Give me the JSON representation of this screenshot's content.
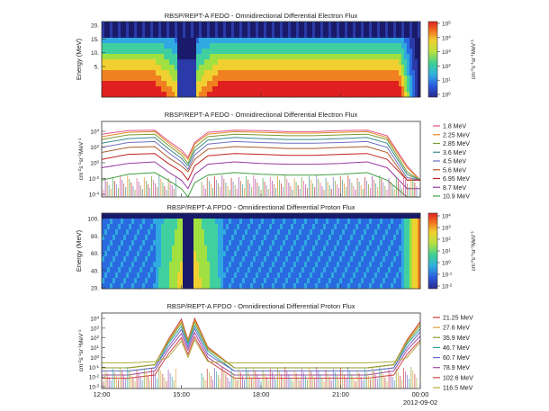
{
  "panels": [
    {
      "title": "RBSP/REPT-A  FEDO - Omnidirectional Differential Electron Flux",
      "kind": "spectrogram",
      "ylabel": "Energy (MeV)",
      "yticks": [
        "20.",
        "15.",
        "10.",
        "5."
      ],
      "colorbar": {
        "ticks": [
          "10^5",
          "10^4",
          "10^3",
          "10^2",
          "10^1",
          "10^0"
        ],
        "unit": "cm^-2s^-1sr^-1MeV^-1"
      }
    },
    {
      "title": "RBSP/REPT-A  FEDO - Omnidirectional Differential Electron Flux",
      "kind": "lines",
      "ylabel": "cm^-2s^-1sr^-1MeV^-1",
      "yticks": [
        "10^4",
        "10^2",
        "10^0",
        "10^-2",
        "10^-4"
      ],
      "legend": [
        {
          "label": "1.8 MeV",
          "color": "#e0508a"
        },
        {
          "label": "2.25 MeV",
          "color": "#e08a20"
        },
        {
          "label": "2.85 MeV",
          "color": "#7a9a30"
        },
        {
          "label": "3.6 MeV",
          "color": "#3a8a8a"
        },
        {
          "label": "4.5 MeV",
          "color": "#6f6fc0"
        },
        {
          "label": "5.6 MeV",
          "color": "#b05a2a"
        },
        {
          "label": "6.95 MeV",
          "color": "#c02020"
        },
        {
          "label": "8.7 MeV",
          "color": "#9a3aa0"
        },
        {
          "label": "10.9 MeV",
          "color": "#40a040"
        }
      ]
    },
    {
      "title": "RBSP/REPT-A  FPDO - Omnidirectional Differential Proton Flux",
      "kind": "spectrogram",
      "ylabel": "Energy (MeV)",
      "yticks": [
        "100.",
        "80.",
        "60.",
        "40.",
        "20."
      ],
      "colorbar": {
        "ticks": [
          "10^4",
          "10^3",
          "10^2",
          "10^1",
          "10^0",
          "10^-1",
          "10^-2"
        ],
        "unit": "cm^-2s^-1sr^-1MeV^-1"
      }
    },
    {
      "title": "RBSP/REPT-A  FPDO - Omnidirectional Differential Proton Flux",
      "kind": "lines",
      "ylabel": "cm^-2s^-1sr^-1MeV^-1",
      "yticks": [
        "10^4",
        "10^3",
        "10^2",
        "10^1",
        "10^0",
        "10^-1",
        "10^-2",
        "10^-3"
      ],
      "legend": [
        {
          "label": "21.25 MeV",
          "color": "#c03a3a"
        },
        {
          "label": "27.6 MeV",
          "color": "#e0a030"
        },
        {
          "label": "35.9 MeV",
          "color": "#8aa030"
        },
        {
          "label": "46.7 MeV",
          "color": "#30a0a0"
        },
        {
          "label": "60.7 MeV",
          "color": "#6a6ac8"
        },
        {
          "label": "78.9 MeV",
          "color": "#a04aa0"
        },
        {
          "label": "102.6 MeV",
          "color": "#d04040"
        },
        {
          "label": "116.5 MeV",
          "color": "#b0b040"
        }
      ]
    }
  ],
  "xticks": [
    "12:00",
    "15:00",
    "18:00",
    "21:00",
    "00:00"
  ],
  "date_label": "2012-09-02",
  "chart_data": [
    {
      "type": "heatmap",
      "title": "RBSP/REPT-A  FEDO - Omnidirectional Differential Electron Flux",
      "xlabel": "",
      "ylabel": "Energy (MeV)",
      "x_range": [
        "12:00",
        "00:00"
      ],
      "y_range_mev": [
        1.8,
        20
      ],
      "color_scale": "log",
      "color_range": [
        1,
        100000
      ],
      "color_unit": "cm^-2s^-1sr^-1MeV^-1"
    },
    {
      "type": "line",
      "title": "RBSP/REPT-A  FEDO - Omnidirectional Differential Electron Flux",
      "x": [
        "12:00",
        "13:00",
        "14:00",
        "14:30",
        "15:00",
        "15:15",
        "15:30",
        "16:00",
        "17:00",
        "18:00",
        "19:00",
        "20:00",
        "21:00",
        "22:00",
        "22:45",
        "23:30",
        "00:00"
      ],
      "ylabel": "cm^-2s^-1sr^-1MeV^-1",
      "y_scale": "log",
      "ylim": [
        0.0001,
        100000
      ],
      "series": [
        {
          "name": "1.8 MeV",
          "values": [
            3000,
            8000,
            9000,
            500,
            40,
            5,
            300,
            5000,
            9000,
            8000,
            6000,
            6000,
            8000,
            9000,
            2000,
            0.5,
            0.01
          ]
        },
        {
          "name": "2.25 MeV",
          "values": [
            1500,
            5000,
            6000,
            300,
            20,
            3,
            200,
            3000,
            6000,
            5000,
            4000,
            4000,
            5000,
            6000,
            1200,
            0.3,
            0.01
          ]
        },
        {
          "name": "2.85 MeV",
          "values": [
            700,
            2500,
            3000,
            150,
            10,
            1,
            80,
            1500,
            3000,
            2500,
            2000,
            2000,
            2500,
            3000,
            700,
            0.1,
            0.01
          ]
        },
        {
          "name": "3.6 MeV",
          "values": [
            250,
            900,
            1200,
            60,
            4,
            0.5,
            30,
            600,
            1200,
            900,
            700,
            700,
            900,
            1200,
            250,
            0.05,
            0.01
          ]
        },
        {
          "name": "4.5 MeV",
          "values": [
            80,
            300,
            400,
            20,
            1.5,
            0.2,
            10,
            200,
            400,
            300,
            250,
            250,
            300,
            400,
            80,
            0.02,
            0.01
          ]
        },
        {
          "name": "5.6 MeV",
          "values": [
            20,
            80,
            100,
            5,
            0.5,
            0.1,
            3,
            50,
            100,
            80,
            60,
            60,
            80,
            100,
            20,
            0.01,
            0.01
          ]
        },
        {
          "name": "6.95 MeV",
          "values": [
            3,
            12,
            15,
            1,
            0.1,
            0.01,
            0.5,
            8,
            15,
            12,
            9,
            9,
            12,
            15,
            3,
            0.01,
            0.01
          ]
        },
        {
          "name": "8.7 MeV",
          "values": [
            0.3,
            1,
            1.5,
            0.1,
            0.01,
            0.001,
            0.05,
            0.8,
            1.5,
            1,
            0.8,
            0.8,
            1,
            1.5,
            0.3,
            0.001,
            0.001
          ]
        },
        {
          "name": "10.9 MeV",
          "values": [
            0.01,
            0.05,
            0.08,
            0.01,
            0.001,
            0.0001,
            0.005,
            0.04,
            0.08,
            0.05,
            0.04,
            0.04,
            0.05,
            0.08,
            0.01,
            0.0001,
            0.0001
          ]
        }
      ]
    },
    {
      "type": "heatmap",
      "title": "RBSP/REPT-A  FPDO - Omnidirectional Differential Proton Flux",
      "xlabel": "",
      "ylabel": "Energy (MeV)",
      "x_range": [
        "12:00",
        "00:00"
      ],
      "y_range_mev": [
        20,
        110
      ],
      "color_scale": "log",
      "color_range": [
        0.01,
        10000
      ],
      "color_unit": "cm^-2s^-1sr^-1MeV^-1"
    },
    {
      "type": "line",
      "title": "RBSP/REPT-A  FPDO - Omnidirectional Differential Proton Flux",
      "x": [
        "12:00",
        "13:00",
        "14:00",
        "14:30",
        "15:00",
        "15:15",
        "15:30",
        "16:00",
        "17:00",
        "18:00",
        "19:00",
        "20:00",
        "21:00",
        "22:00",
        "23:00",
        "23:30",
        "00:00"
      ],
      "ylabel": "cm^-2s^-1sr^-1MeV^-1",
      "y_scale": "log",
      "ylim": [
        0.001,
        20000
      ],
      "series": [
        {
          "name": "21.25 MeV",
          "values": [
            0.1,
            0.1,
            0.2,
            50,
            5000,
            50,
            6000,
            10,
            0.1,
            0.1,
            0.1,
            0.1,
            0.1,
            0.1,
            0.2,
            50,
            3000
          ]
        },
        {
          "name": "27.6 MeV",
          "values": [
            0.1,
            0.1,
            0.2,
            40,
            3000,
            40,
            4000,
            8,
            0.1,
            0.1,
            0.1,
            0.1,
            0.1,
            0.1,
            0.2,
            40,
            2000
          ]
        },
        {
          "name": "35.9 MeV",
          "values": [
            0.1,
            0.1,
            0.2,
            30,
            2000,
            30,
            2500,
            6,
            0.1,
            0.1,
            0.1,
            0.1,
            0.1,
            0.1,
            0.2,
            30,
            1200
          ]
        },
        {
          "name": "46.7 MeV",
          "values": [
            0.05,
            0.05,
            0.1,
            20,
            1000,
            20,
            1200,
            4,
            0.05,
            0.05,
            0.05,
            0.05,
            0.05,
            0.05,
            0.1,
            20,
            600
          ]
        },
        {
          "name": "60.7 MeV",
          "values": [
            0.05,
            0.05,
            0.1,
            10,
            500,
            10,
            600,
            2,
            0.05,
            0.05,
            0.05,
            0.05,
            0.05,
            0.05,
            0.1,
            10,
            300
          ]
        },
        {
          "name": "78.9 MeV",
          "values": [
            0.02,
            0.02,
            0.05,
            5,
            200,
            5,
            250,
            1,
            0.02,
            0.02,
            0.02,
            0.02,
            0.02,
            0.02,
            0.05,
            5,
            120
          ]
        },
        {
          "name": "102.6 MeV",
          "values": [
            0.01,
            0.01,
            0.02,
            2,
            80,
            2,
            100,
            0.5,
            0.01,
            0.01,
            0.01,
            0.01,
            0.01,
            0.01,
            0.02,
            2,
            50
          ]
        },
        {
          "name": "116.5 MeV",
          "values": [
            0.3,
            0.3,
            0.4,
            1,
            40,
            1,
            50,
            0.4,
            0.3,
            0.3,
            0.3,
            0.3,
            0.3,
            0.3,
            0.4,
            1,
            30
          ]
        }
      ]
    }
  ]
}
